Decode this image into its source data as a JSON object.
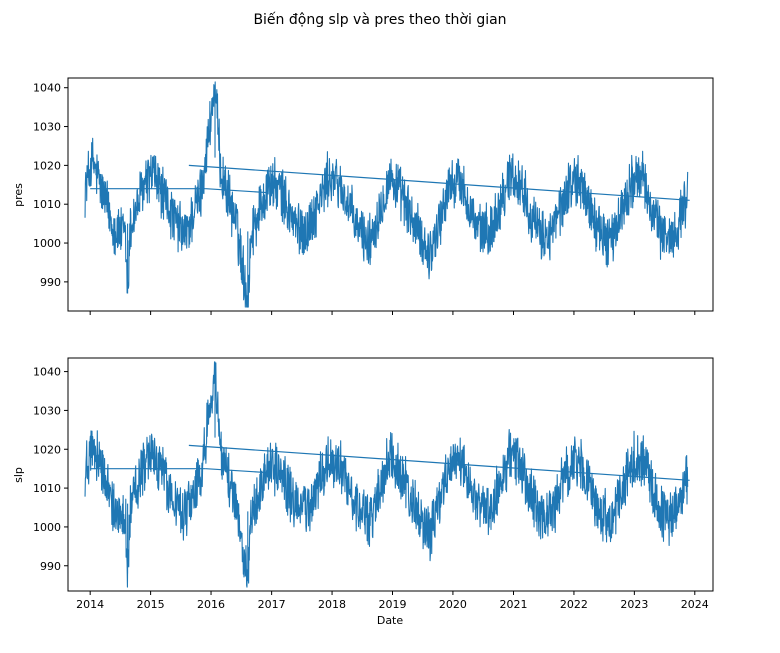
{
  "figure_title": "Biến động slp và pres theo thời gian",
  "chart_data": [
    {
      "type": "line",
      "ylabel": "pres",
      "xlabel": "",
      "x_range": [
        "2013-08-20",
        "2024-04-20"
      ],
      "ylim": [
        982.5,
        1042.5
      ],
      "yticks": [
        990,
        1000,
        1010,
        1020,
        1030,
        1040
      ],
      "ytick_labels": [
        "990",
        "1000",
        "1010",
        "1020",
        "1030",
        "1040"
      ],
      "xtick_labels_visible": false,
      "grid": false,
      "series": [
        {
          "color": "#1f77b4",
          "description_points": [
            [
              "2013-12-01",
              1014
            ],
            [
              "2014-01-15",
              1021
            ],
            [
              "2014-03-01",
              1015
            ],
            [
              "2014-06-01",
              1003
            ],
            [
              "2014-08-01",
              1002
            ],
            [
              "2014-08-15",
              987
            ],
            [
              "2014-09-01",
              1004
            ],
            [
              "2014-11-15",
              1014
            ],
            [
              "2015-01-15",
              1018
            ],
            [
              "2015-03-01",
              1014
            ],
            [
              "2015-06-01",
              1005
            ],
            [
              "2015-08-01",
              1002
            ],
            [
              "2015-11-01",
              1013
            ],
            [
              "2016-01-25",
              1040
            ],
            [
              "2016-03-01",
              1018
            ],
            [
              "2016-06-01",
              1005
            ],
            [
              "2016-08-10",
              985
            ],
            [
              "2016-09-01",
              1003
            ],
            [
              "2016-12-15",
              1015
            ],
            [
              "2017-02-15",
              1014
            ],
            [
              "2017-06-01",
              1004
            ],
            [
              "2017-08-01",
              1003
            ],
            [
              "2017-12-15",
              1017
            ],
            [
              "2018-02-15",
              1015
            ],
            [
              "2018-06-01",
              1004
            ],
            [
              "2018-08-15",
              1000
            ],
            [
              "2018-12-15",
              1017
            ],
            [
              "2019-02-15",
              1013
            ],
            [
              "2019-06-01",
              1003
            ],
            [
              "2019-08-15",
              997
            ],
            [
              "2019-12-15",
              1015
            ],
            [
              "2020-02-15",
              1016
            ],
            [
              "2020-06-01",
              1003
            ],
            [
              "2020-08-15",
              1003
            ],
            [
              "2020-12-15",
              1018
            ],
            [
              "2021-02-15",
              1015
            ],
            [
              "2021-06-01",
              1002
            ],
            [
              "2021-08-15",
              1002
            ],
            [
              "2021-12-15",
              1016
            ],
            [
              "2022-02-15",
              1015
            ],
            [
              "2022-06-01",
              1003
            ],
            [
              "2022-08-15",
              1000
            ],
            [
              "2022-12-15",
              1016
            ],
            [
              "2023-02-15",
              1017
            ],
            [
              "2023-06-01",
              1003
            ],
            [
              "2023-08-15",
              1001
            ],
            [
              "2023-11-20",
              1012
            ]
          ],
          "seasonal_amplitude": 8,
          "noise_amplitude": 6,
          "connector_lines": [
            [
              [
                "2014-01-01",
                1014
              ],
              [
                "2015-12-01",
                1014
              ]
            ],
            [
              [
                "2015-12-01",
                1014
              ],
              [
                "2016-12-01",
                1013
              ]
            ],
            [
              [
                "2015-08-20",
                1020
              ],
              [
                "2023-12-01",
                1011
              ]
            ]
          ]
        }
      ]
    },
    {
      "type": "line",
      "ylabel": "slp",
      "xlabel": "Date",
      "x_range": [
        "2013-08-20",
        "2024-04-20"
      ],
      "ylim": [
        983.5,
        1043.5
      ],
      "yticks": [
        990,
        1000,
        1010,
        1020,
        1030,
        1040
      ],
      "ytick_labels": [
        "990",
        "1000",
        "1010",
        "1020",
        "1030",
        "1040"
      ],
      "xticks": [
        "2014-01-01",
        "2015-01-01",
        "2016-01-01",
        "2017-01-01",
        "2018-01-01",
        "2019-01-01",
        "2020-01-01",
        "2021-01-01",
        "2022-01-01",
        "2023-01-01",
        "2024-01-01"
      ],
      "xtick_labels": [
        "2014",
        "2015",
        "2016",
        "2017",
        "2018",
        "2019",
        "2020",
        "2021",
        "2022",
        "2023",
        "2024"
      ],
      "grid": false,
      "series": [
        {
          "color": "#1f77b4",
          "description_points": [
            [
              "2013-12-01",
              1015
            ],
            [
              "2014-01-15",
              1022
            ],
            [
              "2014-03-01",
              1016
            ],
            [
              "2014-06-01",
              1004
            ],
            [
              "2014-08-01",
              1003
            ],
            [
              "2014-08-15",
              988
            ],
            [
              "2014-09-01",
              1005
            ],
            [
              "2014-11-15",
              1015
            ],
            [
              "2015-01-15",
              1019
            ],
            [
              "2015-03-01",
              1015
            ],
            [
              "2015-06-01",
              1006
            ],
            [
              "2015-08-01",
              1003
            ],
            [
              "2015-11-01",
              1014
            ],
            [
              "2016-01-25",
              1041
            ],
            [
              "2016-03-01",
              1019
            ],
            [
              "2016-06-01",
              1006
            ],
            [
              "2016-08-10",
              986
            ],
            [
              "2016-09-01",
              1004
            ],
            [
              "2016-12-15",
              1016
            ],
            [
              "2017-02-15",
              1015
            ],
            [
              "2017-06-01",
              1005
            ],
            [
              "2017-08-01",
              1004
            ],
            [
              "2017-12-15",
              1018
            ],
            [
              "2018-02-15",
              1016
            ],
            [
              "2018-06-01",
              1005
            ],
            [
              "2018-08-15",
              1001
            ],
            [
              "2018-12-15",
              1018
            ],
            [
              "2019-02-15",
              1014
            ],
            [
              "2019-06-01",
              1004
            ],
            [
              "2019-08-15",
              998
            ],
            [
              "2019-12-15",
              1016
            ],
            [
              "2020-02-15",
              1017
            ],
            [
              "2020-06-01",
              1004
            ],
            [
              "2020-08-15",
              1004
            ],
            [
              "2020-12-15",
              1019
            ],
            [
              "2021-02-15",
              1016
            ],
            [
              "2021-06-01",
              1003
            ],
            [
              "2021-08-15",
              1003
            ],
            [
              "2021-12-15",
              1017
            ],
            [
              "2022-02-15",
              1016
            ],
            [
              "2022-06-01",
              1004
            ],
            [
              "2022-08-15",
              1001
            ],
            [
              "2022-12-15",
              1017
            ],
            [
              "2023-02-15",
              1018
            ],
            [
              "2023-06-01",
              1004
            ],
            [
              "2023-08-15",
              1002
            ],
            [
              "2023-11-20",
              1013
            ]
          ],
          "seasonal_amplitude": 8,
          "noise_amplitude": 6,
          "connector_lines": [
            [
              [
                "2014-01-01",
                1015
              ],
              [
                "2015-12-01",
                1015
              ]
            ],
            [
              [
                "2015-12-01",
                1015
              ],
              [
                "2016-12-01",
                1014
              ]
            ],
            [
              [
                "2015-08-20",
                1021
              ],
              [
                "2023-12-01",
                1012
              ]
            ]
          ]
        }
      ]
    }
  ]
}
